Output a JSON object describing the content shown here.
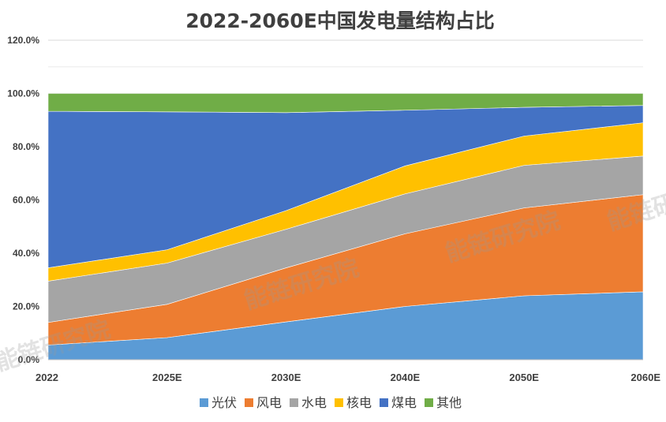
{
  "chart_data": {
    "type": "area",
    "stacked": true,
    "title": "2022-2060E中国发电量结构占比",
    "categories": [
      "2022",
      "2025E",
      "2030E",
      "2040E",
      "2050E",
      "2060E"
    ],
    "ylim": [
      0,
      120
    ],
    "yticks": [
      "0.0%",
      "20.0%",
      "40.0%",
      "60.0%",
      "80.0%",
      "100.0%",
      "120.0%"
    ],
    "ytick_values": [
      0,
      20,
      40,
      60,
      80,
      100,
      120
    ],
    "grid": true,
    "legend_position": "bottom",
    "series": [
      {
        "name": "光伏",
        "color": "#5B9BD5",
        "values": [
          5.5,
          8.3,
          14.2,
          20.0,
          24.0,
          25.5
        ]
      },
      {
        "name": "风电",
        "color": "#ED7D31",
        "values": [
          8.5,
          12.5,
          20.3,
          27.3,
          33.0,
          36.5
        ]
      },
      {
        "name": "水电",
        "color": "#A5A5A5",
        "values": [
          15.5,
          15.5,
          14.5,
          15.0,
          16.0,
          14.5
        ]
      },
      {
        "name": "核电",
        "color": "#FFC000",
        "values": [
          5.0,
          5.0,
          7.0,
          10.5,
          11.0,
          12.5
        ]
      },
      {
        "name": "煤电",
        "color": "#4472C4",
        "values": [
          58.8,
          51.8,
          36.8,
          20.9,
          10.8,
          6.5
        ]
      },
      {
        "name": "其他",
        "color": "#70AD47",
        "values": [
          6.7,
          6.9,
          7.2,
          6.3,
          5.2,
          4.5
        ]
      }
    ],
    "watermark": "能链研究院"
  }
}
